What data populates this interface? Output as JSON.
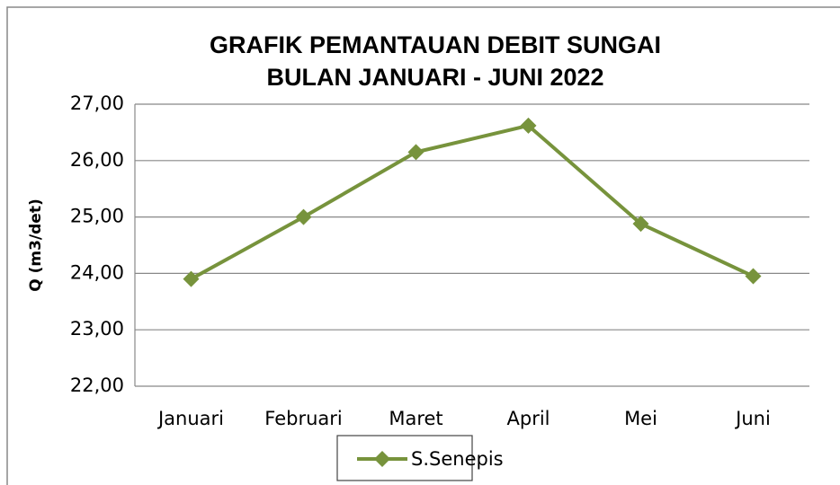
{
  "chart_data": {
    "type": "line",
    "title": [
      "GRAFIK PEMANTAUAN DEBIT SUNGAI",
      "BULAN JANUARI - JUNI 2022"
    ],
    "y_label": "Q (m3/det)",
    "categories": [
      "Januari",
      "Februari",
      "Maret",
      "April",
      "Mei",
      "Juni"
    ],
    "series": [
      {
        "name": "S.Senepis",
        "color": "#77933c",
        "values": [
          23.9,
          25.0,
          26.15,
          26.62,
          24.88,
          23.95
        ]
      }
    ],
    "ylim": [
      22,
      27
    ],
    "yticks": [
      {
        "value": 22,
        "label": "22,00"
      },
      {
        "value": 23,
        "label": "23,00"
      },
      {
        "value": 24,
        "label": "24,00"
      },
      {
        "value": 25,
        "label": "25,00"
      },
      {
        "value": 26,
        "label": "26,00"
      },
      {
        "value": 27,
        "label": "27,00"
      }
    ],
    "grid": true,
    "legend": "bottom"
  }
}
